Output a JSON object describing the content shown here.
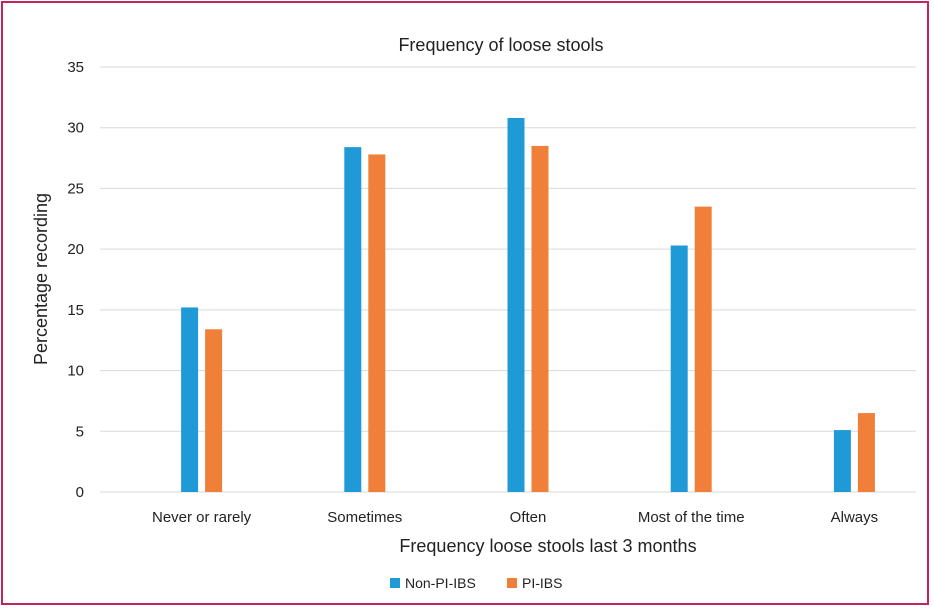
{
  "chart_data": {
    "type": "bar",
    "title": "Frequency of loose stools",
    "xlabel": "Frequency loose stools last 3 months",
    "ylabel": "Percentage recording",
    "categories": [
      "Never or rarely",
      "Sometimes",
      "Often",
      "Most of the time",
      "Always"
    ],
    "series": [
      {
        "name": "Non-PI-IBS",
        "color": "#1f9ad6",
        "values": [
          15.2,
          28.4,
          30.8,
          20.3,
          5.1
        ]
      },
      {
        "name": "PI-IBS",
        "color": "#f07f3a",
        "values": [
          13.4,
          27.8,
          28.5,
          23.5,
          6.5
        ]
      }
    ],
    "ylim": [
      0,
      35
    ],
    "yticks": [
      "0",
      "5",
      "10",
      "15",
      "20",
      "25",
      "30",
      "35"
    ],
    "grid": true,
    "legend_position": "bottom"
  },
  "colors": {
    "border": "#c4245e",
    "grid": "#d9d9d9"
  }
}
